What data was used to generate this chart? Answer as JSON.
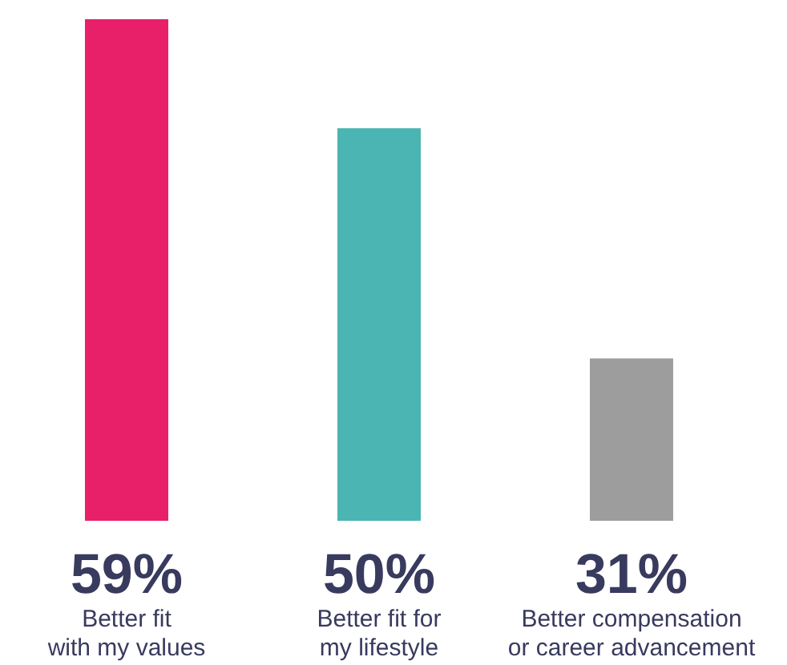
{
  "chart_data": {
    "type": "bar",
    "categories": [
      "Better fit\nwith my values",
      "Better fit for\nmy lifestyle",
      "Better compensation\nor career advancement"
    ],
    "values": [
      59,
      50,
      31
    ],
    "colors": [
      "#e8206a",
      "#4ab5b2",
      "#9d9d9d"
    ],
    "value_labels": [
      "59%",
      "50%",
      "31%"
    ],
    "ylim": [
      17.6,
      59
    ],
    "tick_labels": "x"
  }
}
